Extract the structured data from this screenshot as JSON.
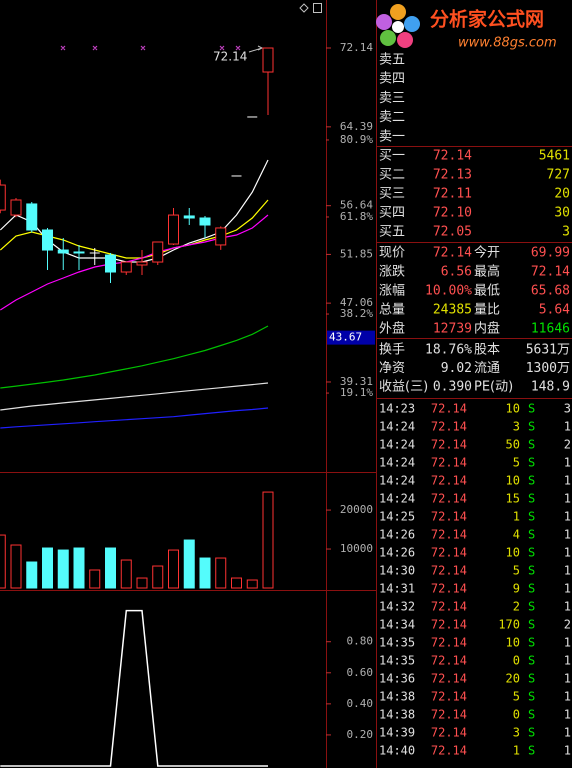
{
  "chart_data": [
    {
      "type": "candlestick",
      "ylim": [
        30.46,
        75.09
      ],
      "yticks": [
        72.14,
        64.39,
        56.64,
        51.85,
        47.06,
        39.31
      ],
      "fib_levels": [
        {
          "value": 63.1,
          "label": "80.9%"
        },
        {
          "value": 55.53,
          "label": "61.8%"
        },
        {
          "value": 45.99,
          "label": "38.2%"
        },
        {
          "value": 38.22,
          "label": "19.1%"
        }
      ],
      "marker": 43.67,
      "annotation": "72.14",
      "candles": [
        [
          56.21,
          59.2,
          55.9,
          58.67
        ],
        [
          55.72,
          57.4,
          55.5,
          57.2
        ],
        [
          56.81,
          57.0,
          54.0,
          54.25
        ],
        [
          54.25,
          54.45,
          50.32,
          52.28
        ],
        [
          52.28,
          53.46,
          50.32,
          51.99
        ],
        [
          52.09,
          52.78,
          50.32,
          51.99
        ],
        [
          51.99,
          52.48,
          50.81,
          51.99
        ],
        [
          51.79,
          51.99,
          49.04,
          50.12
        ],
        [
          50.12,
          51.1,
          49.83,
          51.1
        ],
        [
          50.81,
          52.28,
          49.83,
          51.1
        ],
        [
          51.1,
          53.07,
          50.81,
          53.07
        ],
        [
          52.87,
          56.41,
          52.78,
          55.72
        ],
        [
          55.63,
          56.41,
          54.74,
          55.43
        ],
        [
          55.43,
          55.63,
          53.46,
          54.74
        ],
        [
          52.78,
          54.6,
          52.3,
          54.45
        ],
        [
          59.56,
          59.56,
          59.56,
          59.56
        ],
        [
          65.36,
          65.36,
          65.36,
          65.36
        ],
        [
          69.78,
          72.14,
          65.55,
          72.14
        ]
      ],
      "ma_lines": [
        {
          "color": "#ffffff",
          "values": [
            54.25,
            55.72,
            55.04,
            53.27,
            52.09,
            51.5,
            51.5,
            51.5,
            51.1,
            51.1,
            51.5,
            52.28,
            52.97,
            53.46,
            54.05,
            55.72,
            57.98,
            61.13
          ]
        },
        {
          "color": "#ffff00",
          "values": [
            52.28,
            53.66,
            54.05,
            53.66,
            53.27,
            52.68,
            52.28,
            51.89,
            51.5,
            51.5,
            51.89,
            52.48,
            52.78,
            53.27,
            53.66,
            54.25,
            55.43,
            57.2
          ]
        },
        {
          "color": "#ff00ff",
          "values": [
            46.39,
            47.37,
            48.15,
            48.94,
            49.53,
            50.12,
            50.61,
            50.91,
            51.1,
            51.5,
            52.09,
            52.48,
            52.78,
            53.07,
            53.46,
            53.76,
            54.45,
            55.72
          ]
        },
        {
          "color": "#00c000",
          "values": [
            38.72,
            38.9,
            39.1,
            39.3,
            39.5,
            39.75,
            40.0,
            40.3,
            40.6,
            40.9,
            41.25,
            41.6,
            42.0,
            42.4,
            42.9,
            43.4,
            44.0,
            44.81
          ]
        },
        {
          "color": "#e0e0e0",
          "values": [
            36.55,
            36.75,
            36.95,
            37.1,
            37.25,
            37.4,
            37.55,
            37.7,
            37.85,
            38.0,
            38.15,
            38.3,
            38.45,
            38.6,
            38.75,
            38.9,
            39.05,
            39.21
          ]
        },
        {
          "color": "#2020ff",
          "values": [
            34.79,
            34.9,
            35.0,
            35.1,
            35.2,
            35.3,
            35.4,
            35.5,
            35.6,
            35.7,
            35.8,
            35.9,
            36.05,
            36.2,
            36.35,
            36.5,
            36.6,
            36.75
          ]
        }
      ]
    },
    {
      "type": "bar",
      "ylim": [
        0,
        29000
      ],
      "yticks": [
        20000,
        10000
      ],
      "values": [
        13590,
        11030,
        6670,
        10260,
        9740,
        10260,
        4620,
        10260,
        7180,
        2560,
        5640,
        9740,
        12310,
        7690,
        7690,
        2560,
        2050,
        24620
      ]
    },
    {
      "type": "line",
      "ylim": [
        0,
        1.12
      ],
      "yticks": [
        {
          "value": 0.8,
          "label": "0.80"
        },
        {
          "value": 0.6,
          "label": "0.60"
        },
        {
          "value": 0.4,
          "label": "0.40"
        },
        {
          "value": 0.2,
          "label": "0.20"
        }
      ],
      "color": "#ffffff",
      "values": [
        0,
        0,
        0,
        0,
        0,
        0,
        0,
        0,
        1,
        1,
        0,
        0,
        0,
        0,
        0,
        0,
        0,
        0
      ]
    }
  ],
  "logo": {
    "name": "分析家公式网",
    "url": "www.88gs.com"
  },
  "order_book": {
    "asks": [
      "卖五",
      "卖四",
      "卖三",
      "卖二",
      "卖一"
    ],
    "bids": [
      [
        "买一",
        "72.14",
        "5461"
      ],
      [
        "买二",
        "72.13",
        "727"
      ],
      [
        "买三",
        "72.11",
        "20"
      ],
      [
        "买四",
        "72.10",
        "30"
      ],
      [
        "买五",
        "72.05",
        "3"
      ]
    ]
  },
  "quote": [
    [
      "现价",
      "72.14",
      "今开",
      "69.99"
    ],
    [
      "涨跌",
      "6.56",
      "最高",
      "72.14"
    ],
    [
      "涨幅",
      "10.00%",
      "最低",
      "65.68"
    ],
    [
      "总量",
      "24385",
      "量比",
      "5.64"
    ],
    [
      "外盘",
      "12739",
      "内盘",
      "11646"
    ]
  ],
  "stats": [
    [
      "换手",
      "18.76%",
      "股本",
      "5631万"
    ],
    [
      "净资",
      "9.02",
      "流通",
      "1300万"
    ],
    [
      "收益(三)",
      "0.390",
      "PE(动)",
      "148.9"
    ]
  ],
  "trades": [
    [
      "14:23",
      "72.14",
      "10",
      "S",
      "3"
    ],
    [
      "14:24",
      "72.14",
      "3",
      "S",
      "1"
    ],
    [
      "14:24",
      "72.14",
      "50",
      "S",
      "2"
    ],
    [
      "14:24",
      "72.14",
      "5",
      "S",
      "1"
    ],
    [
      "14:24",
      "72.14",
      "10",
      "S",
      "1"
    ],
    [
      "14:24",
      "72.14",
      "15",
      "S",
      "1"
    ],
    [
      "14:25",
      "72.14",
      "1",
      "S",
      "1"
    ],
    [
      "14:26",
      "72.14",
      "4",
      "S",
      "1"
    ],
    [
      "14:26",
      "72.14",
      "10",
      "S",
      "1"
    ],
    [
      "14:30",
      "72.14",
      "5",
      "S",
      "1"
    ],
    [
      "14:31",
      "72.14",
      "9",
      "S",
      "1"
    ],
    [
      "14:32",
      "72.14",
      "2",
      "S",
      "1"
    ],
    [
      "14:34",
      "72.14",
      "170",
      "S",
      "2"
    ],
    [
      "14:35",
      "72.14",
      "10",
      "S",
      "1"
    ],
    [
      "14:35",
      "72.14",
      "0",
      "S",
      "1"
    ],
    [
      "14:36",
      "72.14",
      "20",
      "S",
      "1"
    ],
    [
      "14:38",
      "72.14",
      "5",
      "S",
      "1"
    ],
    [
      "14:38",
      "72.14",
      "0",
      "S",
      "1"
    ],
    [
      "14:39",
      "72.14",
      "3",
      "S",
      "1"
    ],
    [
      "14:40",
      "72.14",
      "1",
      "S",
      "1"
    ]
  ]
}
